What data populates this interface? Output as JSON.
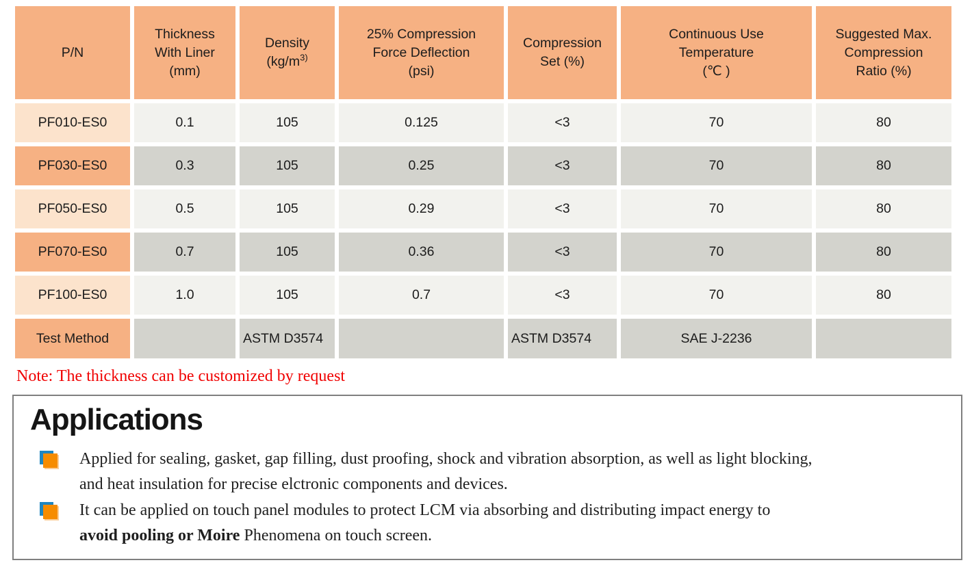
{
  "colors": {
    "header_orange": "#F6B183",
    "pn_light": "#FCE3CC",
    "cell_light": "#F2F2EE",
    "cell_dark": "#D3D3CD",
    "note_red": "#F00000",
    "box_border": "#7F7F7F",
    "bullet_blue": "#1F86C0",
    "bullet_orange": "#F68C00"
  },
  "table": {
    "headers": {
      "pn": "P/N",
      "thickness": [
        "Thickness",
        "With Liner",
        "(mm)"
      ],
      "density": {
        "name": "Density",
        "unit_prefix": "(kg/m",
        "unit_sup": "3)"
      },
      "cfd": [
        "25% Compression",
        "Force Deflection",
        "(psi)"
      ],
      "comp_set": [
        "Compression",
        "Set (%)"
      ],
      "cut": [
        "Continuous Use",
        "Temperature",
        "(℃ )"
      ],
      "ratio": [
        "Suggested Max.",
        "Compression",
        "Ratio (%)"
      ]
    },
    "rows": [
      {
        "pn": "PF010-ES0",
        "thickness": "0.1",
        "density": "105",
        "cfd": "0.125",
        "comp_set": "<3",
        "cut": "70",
        "ratio": "80"
      },
      {
        "pn": "PF030-ES0",
        "thickness": "0.3",
        "density": "105",
        "cfd": "0.25",
        "comp_set": "<3",
        "cut": "70",
        "ratio": "80"
      },
      {
        "pn": "PF050-ES0",
        "thickness": "0.5",
        "density": "105",
        "cfd": "0.29",
        "comp_set": "<3",
        "cut": "70",
        "ratio": "80"
      },
      {
        "pn": "PF070-ES0",
        "thickness": "0.7",
        "density": "105",
        "cfd": "0.36",
        "comp_set": "<3",
        "cut": "70",
        "ratio": "80"
      },
      {
        "pn": "PF100-ES0",
        "thickness": "1.0",
        "density": "105",
        "cfd": "0.7",
        "comp_set": "<3",
        "cut": "70",
        "ratio": "80"
      }
    ],
    "test_method": {
      "label": "Test Method",
      "density": "ASTM D3574",
      "comp_set": "ASTM D3574",
      "cut": "SAE J-2236"
    }
  },
  "note": "Note: The thickness can be customized by request",
  "applications": {
    "title": "Applications",
    "bullets": [
      {
        "lines": [
          "Applied for sealing, gasket, gap filling, dust proofing, shock and vibration absorption, as well as light blocking,",
          "and heat insulation for precise elctronic components and devices."
        ]
      },
      {
        "line1": "It can be applied on touch panel modules to protect LCM via absorbing and distributing impact energy to",
        "bold": "avoid pooling or Moire",
        "after_bold": " Phenomena on touch screen."
      }
    ]
  }
}
